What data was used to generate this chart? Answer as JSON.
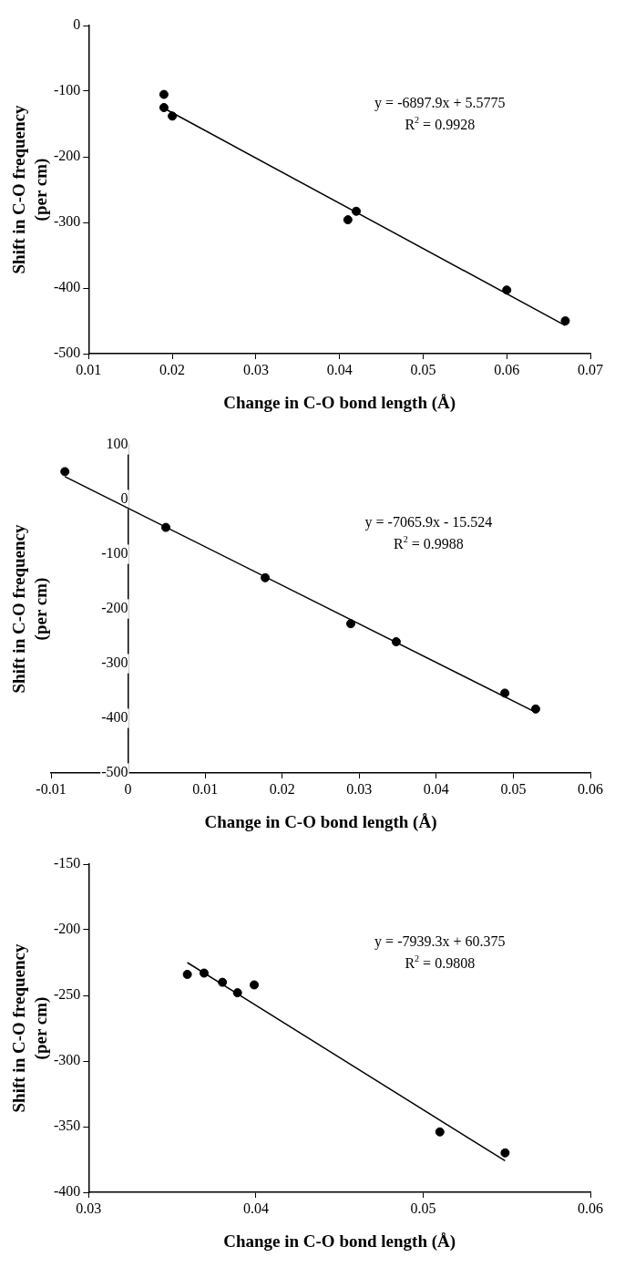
{
  "chart_data": [
    {
      "type": "scatter",
      "xlabel": "Change in C-O bond length (Å)",
      "ylabel": "Shift in C-O frequency\n(per cm)",
      "xlim": [
        0.01,
        0.07
      ],
      "xticks": [
        0.01,
        0.02,
        0.03,
        0.04,
        0.05,
        0.06,
        0.07
      ],
      "ylim": [
        -500,
        0
      ],
      "yticks": [
        -500,
        -400,
        -300,
        -200,
        -100,
        0
      ],
      "grid": false,
      "legend": false,
      "marker": "circle",
      "annotations": [
        "y = -6897.9x + 5.5775",
        "R$^{2}$ = 0.9928"
      ],
      "series": [
        {
          "color": "#000000",
          "x": [
            0.019,
            0.019,
            0.02,
            0.041,
            0.042,
            0.06,
            0.067
          ],
          "values": [
            -105,
            -125,
            -138,
            -296,
            -283,
            -403,
            -450
          ]
        },
        {
          "type": "line",
          "color": "#000000",
          "marker": "none",
          "x": [
            0.019,
            0.067
          ],
          "values": [
            -126,
            -457
          ]
        }
      ]
    },
    {
      "type": "scatter",
      "xlabel": "Change in C-O bond length (Å)",
      "ylabel": "Shift in C-O frequency\n(per cm)",
      "xlim": [
        -0.01,
        0.06
      ],
      "xticks": [
        -0.01,
        0,
        0.01,
        0.02,
        0.03,
        0.04,
        0.05,
        0.06
      ],
      "ylim": [
        -500,
        100
      ],
      "yticks": [
        -500,
        -400,
        -300,
        -200,
        -100,
        0,
        100
      ],
      "grid": false,
      "legend": false,
      "marker": "circle",
      "annotations": [
        "y = -7065.9x - 15.524",
        "R$^{2}$ = 0.9988"
      ],
      "series": [
        {
          "color": "#000000",
          "x": [
            -0.0082,
            0.0049,
            0.0178,
            0.0289,
            0.0348,
            0.0489,
            0.0529
          ],
          "values": [
            51,
            -51,
            -143,
            -227,
            -260,
            -354,
            -383
          ]
        },
        {
          "type": "line",
          "color": "#000000",
          "marker": "none",
          "x": [
            -0.0082,
            0.0529
          ],
          "values": [
            42,
            -389
          ]
        }
      ]
    },
    {
      "type": "scatter",
      "xlabel": "Change in C-O bond length (Å)",
      "ylabel": "Shift in C-O frequency\n(per cm)",
      "xlim": [
        0.03,
        0.06
      ],
      "xticks": [
        0.03,
        0.04,
        0.05,
        0.06
      ],
      "ylim": [
        -400,
        -150
      ],
      "yticks": [
        -400,
        -350,
        -300,
        -250,
        -200,
        -150
      ],
      "grid": false,
      "legend": false,
      "marker": "circle",
      "annotations": [
        "y = -7939.3x + 60.375",
        "R$^{2}$ = 0.9808"
      ],
      "series": [
        {
          "color": "#000000",
          "x": [
            0.0359,
            0.0369,
            0.038,
            0.0389,
            0.0399,
            0.051,
            0.0549
          ],
          "values": [
            -234,
            -233,
            -240,
            -248,
            -242,
            -354,
            -370
          ]
        },
        {
          "type": "line",
          "color": "#000000",
          "marker": "none",
          "x": [
            0.0359,
            0.0549
          ],
          "values": [
            -225,
            -376
          ]
        }
      ]
    }
  ]
}
